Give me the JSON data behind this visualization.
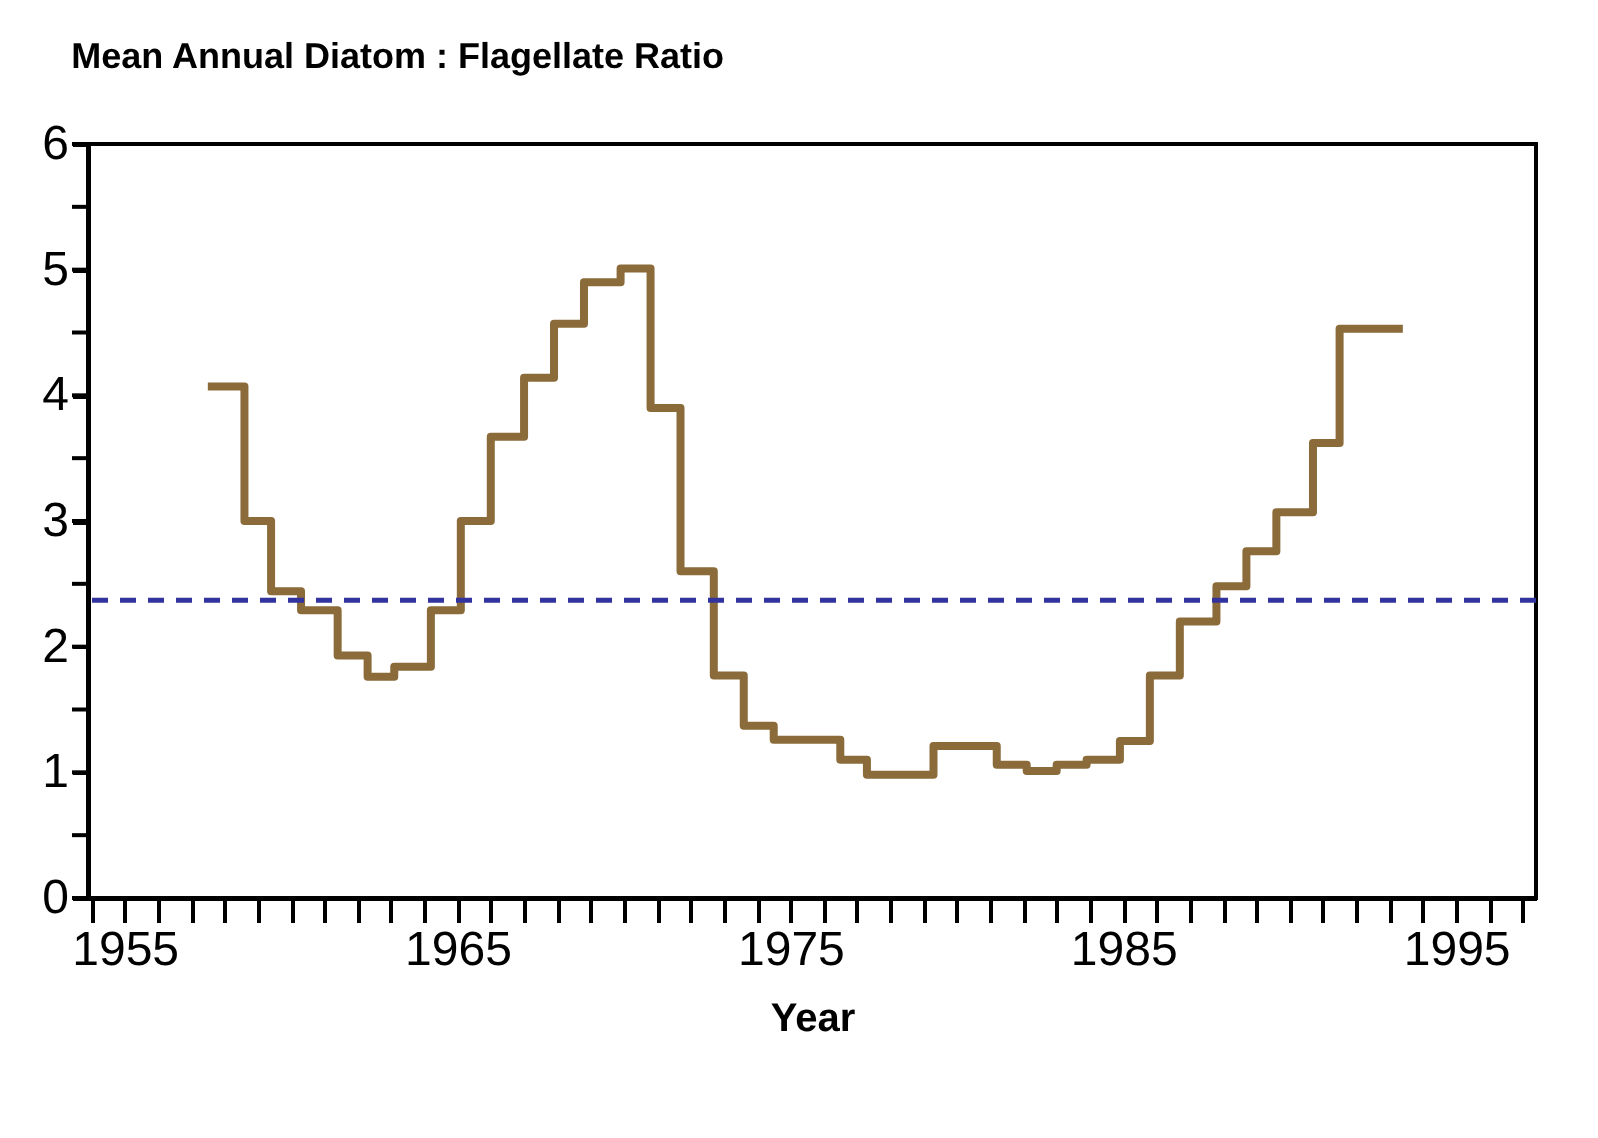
{
  "chart_data": {
    "type": "step",
    "title": "Mean Annual Diatom : Flagellate Ratio",
    "xlabel": "Year",
    "x": [
      1957.5,
      1958.6,
      1959.4,
      1960.3,
      1961.4,
      1962.3,
      1963.1,
      1964.2,
      1965.1,
      1966.0,
      1967.0,
      1967.9,
      1968.8,
      1969.9,
      1970.8,
      1971.7,
      1972.7,
      1973.6,
      1974.5,
      1976.5,
      1977.3,
      1979.3,
      1981.2,
      1982.1,
      1983.0,
      1983.9,
      1984.9,
      1985.8,
      1986.7,
      1987.8,
      1988.7,
      1989.6,
      1990.7,
      1991.5,
      1993.4
    ],
    "series": [
      {
        "color": "#8b6b3a",
        "values": [
          4.07,
          3.0,
          2.44,
          2.29,
          1.93,
          1.76,
          1.84,
          2.29,
          3.0,
          3.67,
          4.14,
          4.57,
          4.9,
          5.01,
          3.9,
          2.6,
          1.77,
          1.37,
          1.26,
          1.1,
          0.98,
          1.21,
          1.06,
          1.01,
          1.06,
          1.1,
          1.25,
          1.77,
          2.2,
          2.48,
          2.76,
          3.07,
          3.62,
          4.53,
          4.53
        ]
      }
    ],
    "xlim": [
      1953.9,
      1997.4
    ],
    "xticks": [
      {
        "value": 1954,
        "label": null
      },
      1955,
      {
        "value": 1956,
        "label": null
      },
      {
        "value": 1957,
        "label": null
      },
      {
        "value": 1958,
        "label": null
      },
      {
        "value": 1959,
        "label": null
      },
      {
        "value": 1960,
        "label": null
      },
      {
        "value": 1961,
        "label": null
      },
      {
        "value": 1962,
        "label": null
      },
      {
        "value": 1963,
        "label": null
      },
      {
        "value": 1964,
        "label": null
      },
      1965,
      {
        "value": 1966,
        "label": null
      },
      {
        "value": 1967,
        "label": null
      },
      {
        "value": 1968,
        "label": null
      },
      {
        "value": 1969,
        "label": null
      },
      {
        "value": 1970,
        "label": null
      },
      {
        "value": 1971,
        "label": null
      },
      {
        "value": 1972,
        "label": null
      },
      {
        "value": 1973,
        "label": null
      },
      {
        "value": 1974,
        "label": null
      },
      1975,
      {
        "value": 1976,
        "label": null
      },
      {
        "value": 1977,
        "label": null
      },
      {
        "value": 1978,
        "label": null
      },
      {
        "value": 1979,
        "label": null
      },
      {
        "value": 1980,
        "label": null
      },
      {
        "value": 1981,
        "label": null
      },
      {
        "value": 1982,
        "label": null
      },
      {
        "value": 1983,
        "label": null
      },
      {
        "value": 1984,
        "label": null
      },
      1985,
      {
        "value": 1986,
        "label": null
      },
      {
        "value": 1987,
        "label": null
      },
      {
        "value": 1988,
        "label": null
      },
      {
        "value": 1989,
        "label": null
      },
      {
        "value": 1990,
        "label": null
      },
      {
        "value": 1991,
        "label": null
      },
      {
        "value": 1992,
        "label": null
      },
      {
        "value": 1993,
        "label": null
      },
      {
        "value": 1994,
        "label": null
      },
      1995,
      {
        "value": 1996,
        "label": null
      },
      {
        "value": 1997,
        "label": null
      }
    ],
    "ylim": [
      0,
      6
    ],
    "yticks": [
      0,
      {
        "value": 0.5,
        "label": null
      },
      1,
      {
        "value": 1.5,
        "label": null
      },
      2,
      {
        "value": 2.5,
        "label": null
      },
      3,
      {
        "value": 3.5,
        "label": null
      },
      4,
      {
        "value": 4.5,
        "label": null
      },
      5,
      {
        "value": 5.5,
        "label": null
      },
      6
    ],
    "ref_lines": [
      {
        "axis": "y",
        "value": 2.37,
        "color": "#3333a0",
        "line_style": "dashed"
      }
    ],
    "grid": false,
    "line_style": "solid",
    "marker": "none"
  }
}
